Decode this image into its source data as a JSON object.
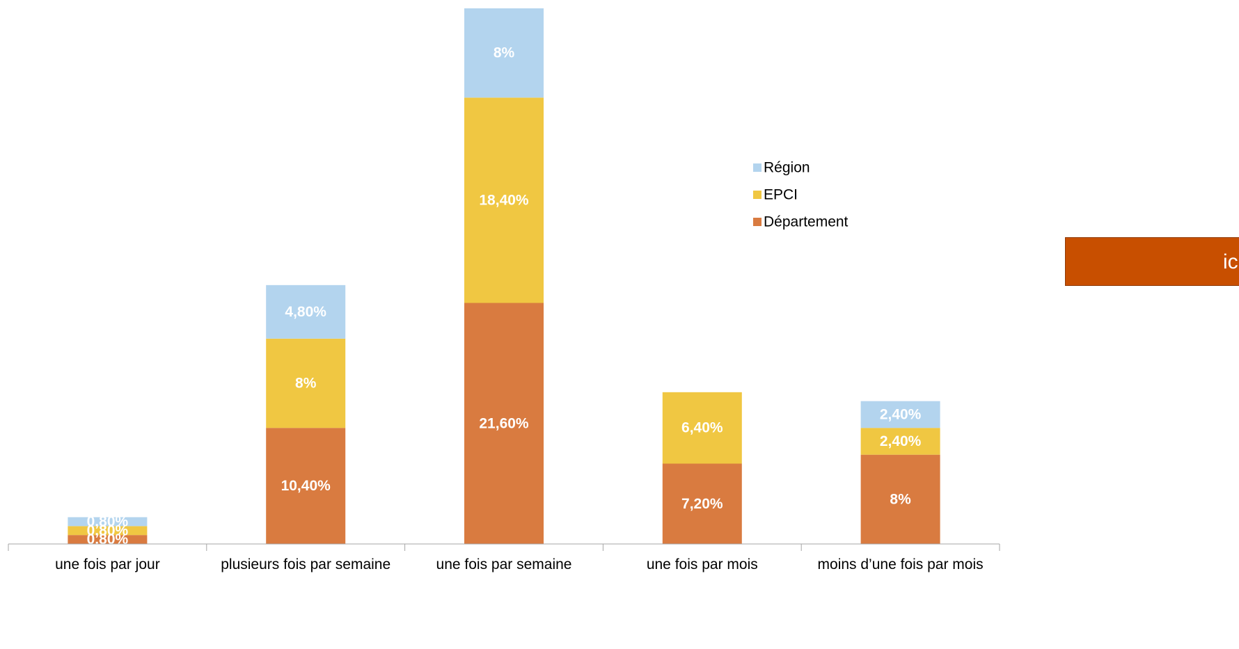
{
  "chart_data": {
    "type": "bar",
    "stacked": true,
    "categories": [
      "une fois par jour",
      "plusieurs fois par semaine",
      "une fois par semaine",
      "une fois par mois",
      "moins d’une fois par mois"
    ],
    "series": [
      {
        "name": "Département",
        "color": "#d97b40",
        "values": [
          0.8,
          10.4,
          21.6,
          7.2,
          8
        ],
        "labels": [
          "0,80%",
          "10,40%",
          "21,60%",
          "7,20%",
          "8%"
        ]
      },
      {
        "name": "EPCI",
        "color": "#f0c742",
        "values": [
          0.8,
          8,
          18.4,
          6.4,
          2.4
        ],
        "labels": [
          "0,80%",
          "8%",
          "18,40%",
          "6,40%",
          "2,40%"
        ]
      },
      {
        "name": "Région",
        "color": "#b3d4ee",
        "values": [
          0.8,
          4.8,
          8,
          0,
          2.4
        ],
        "labels": [
          "0,80%",
          "4,80%",
          "8%",
          "",
          "2,40%"
        ]
      }
    ],
    "legend_order": [
      "Région",
      "EPCI",
      "Département"
    ],
    "legend_position": "right",
    "ylim": [
      0,
      48
    ],
    "y_axis_visible": false,
    "grid": false,
    "label_color": "#ffffff",
    "axis_color": "#a6a6a6"
  },
  "side_box": {
    "text": "ic",
    "color": "#c84f00"
  }
}
